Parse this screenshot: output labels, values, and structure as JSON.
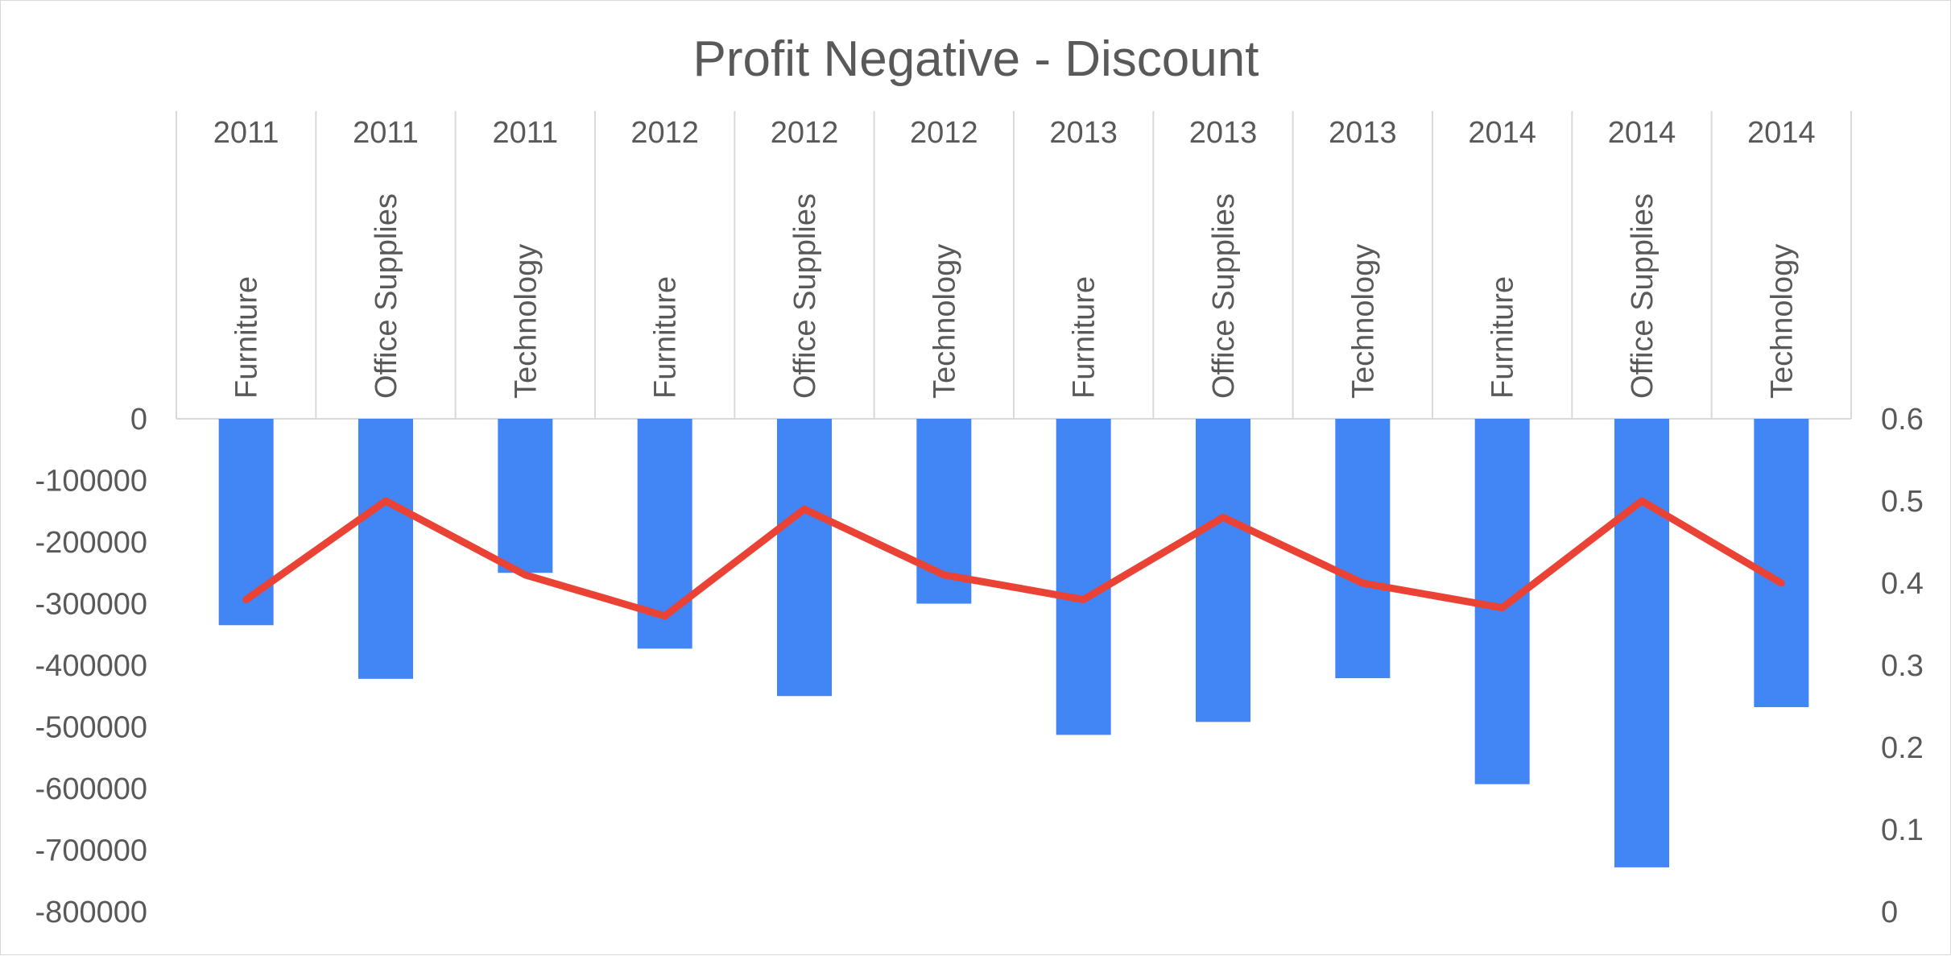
{
  "chart_data": {
    "type": "bar",
    "title": "Profit Negative - Discount",
    "categories": [
      {
        "year": "2011",
        "category": "Furniture"
      },
      {
        "year": "2011",
        "category": "Office Supplies"
      },
      {
        "year": "2011",
        "category": "Technology"
      },
      {
        "year": "2012",
        "category": "Furniture"
      },
      {
        "year": "2012",
        "category": "Office Supplies"
      },
      {
        "year": "2012",
        "category": "Technology"
      },
      {
        "year": "2013",
        "category": "Furniture"
      },
      {
        "year": "2013",
        "category": "Office Supplies"
      },
      {
        "year": "2013",
        "category": "Technology"
      },
      {
        "year": "2014",
        "category": "Furniture"
      },
      {
        "year": "2014",
        "category": "Office Supplies"
      },
      {
        "year": "2014",
        "category": "Technology"
      }
    ],
    "series": [
      {
        "type": "bar",
        "axis": "left",
        "color": "#4285f4",
        "values": [
          -335000,
          -422000,
          -250000,
          -373000,
          -450000,
          -300000,
          -513000,
          -492000,
          -421000,
          -593000,
          -728000,
          -468000
        ]
      },
      {
        "type": "line",
        "axis": "right",
        "color": "#ea4335",
        "values": [
          0.38,
          0.5,
          0.41,
          0.36,
          0.49,
          0.41,
          0.38,
          0.48,
          0.4,
          0.37,
          0.5,
          0.4
        ]
      }
    ],
    "left_axis": {
      "ylim": [
        -800000,
        0
      ],
      "ticks": [
        "0",
        "-100000",
        "-200000",
        "-300000",
        "-400000",
        "-500000",
        "-600000",
        "-700000",
        "-800000"
      ]
    },
    "right_axis": {
      "ylim": [
        0,
        0.6
      ],
      "ticks": [
        "0.6",
        "0.5",
        "0.4",
        "0.3",
        "0.2",
        "0.1",
        "0"
      ]
    },
    "grid": false,
    "legend": "none"
  }
}
